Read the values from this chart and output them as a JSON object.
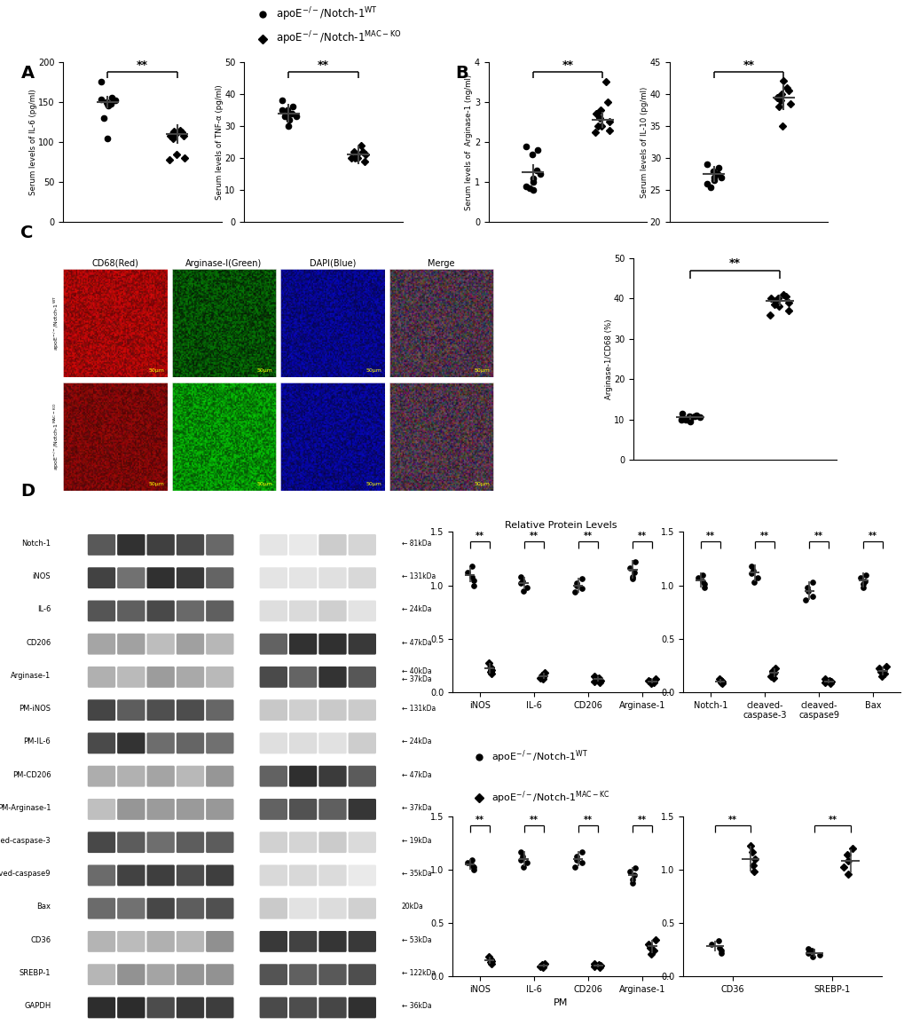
{
  "panel_A": {
    "IL6": {
      "ylabel": "Serum levels of IL-6 (pg/ml)",
      "ylim": [
        0,
        200
      ],
      "yticks": [
        0,
        50,
        100,
        150,
        200
      ],
      "group1": [
        175,
        155,
        150,
        148,
        152,
        145,
        148,
        153,
        130,
        105
      ],
      "group1_mean": 150,
      "group1_err": 8,
      "group2": [
        115,
        112,
        110,
        108,
        113,
        108,
        105,
        85,
        80,
        78
      ],
      "group2_mean": 110,
      "group2_err": 12
    },
    "TNFa": {
      "ylabel": "Serum levels of TNF-α (pg/ml)",
      "ylim": [
        0,
        50
      ],
      "yticks": [
        0,
        10,
        20,
        30,
        40,
        50
      ],
      "group1": [
        38,
        36,
        35,
        34,
        33,
        32,
        34,
        35,
        33,
        30
      ],
      "group1_mean": 34,
      "group1_err": 3,
      "group2": [
        24,
        22,
        21,
        20,
        20,
        19,
        22,
        20,
        21
      ],
      "group2_mean": 21,
      "group2_err": 3
    }
  },
  "panel_B": {
    "Arg1": {
      "ylabel": "Serum levels of  Arginase-1 (ng/ml)",
      "ylim": [
        0,
        4
      ],
      "yticks": [
        0,
        1,
        2,
        3,
        4
      ],
      "group1": [
        1.9,
        1.8,
        1.7,
        1.3,
        1.2,
        1.1,
        1.0,
        0.9,
        0.85,
        0.8
      ],
      "group1_mean": 1.25,
      "group1_err": 0.2,
      "group2": [
        3.5,
        3.0,
        2.8,
        2.7,
        2.6,
        2.5,
        2.4,
        2.4,
        2.3,
        2.25
      ],
      "group2_mean": 2.55,
      "group2_err": 0.2
    },
    "IL10": {
      "ylabel": "Serum levels of IL-10 (pg/ml)",
      "ylim": [
        20,
        45
      ],
      "yticks": [
        20,
        25,
        30,
        35,
        40,
        45
      ],
      "group1": [
        29,
        28.5,
        28,
        27.5,
        27,
        27,
        26.5,
        26,
        25.5
      ],
      "group1_mean": 27.5,
      "group1_err": 1.2,
      "group2": [
        42,
        41,
        40.5,
        40,
        39.5,
        39,
        38.5,
        38,
        35
      ],
      "group2_mean": 39.5,
      "group2_err": 2.0
    }
  },
  "panel_C_scatter": {
    "ylabel": "Arginase-1/CD68 (%)",
    "ylim": [
      0,
      50
    ],
    "yticks": [
      0,
      10,
      20,
      30,
      40,
      50
    ],
    "group1": [
      11.5,
      11.0,
      10.8,
      10.8,
      10.5,
      10.5,
      10.2,
      10.0,
      9.8,
      9.5
    ],
    "group1_mean": 10.5,
    "group1_err": 0.5,
    "group2": [
      41,
      40.5,
      40,
      40,
      39.5,
      39,
      38.5,
      38,
      37,
      36
    ],
    "group2_mean": 39.5,
    "group2_err": 1.5
  },
  "panel_D_charts": {
    "top_left": {
      "title": "Relative Protein Levels",
      "xlabel": "",
      "ylim": [
        0.0,
        1.5
      ],
      "yticks": [
        0.0,
        0.5,
        1.0,
        1.5
      ],
      "categories": [
        "iNOS",
        "IL-6",
        "CD206",
        "Arginase-1"
      ],
      "group1_means": [
        1.1,
        1.02,
        1.0,
        1.15
      ],
      "group1_errs": [
        0.07,
        0.06,
        0.07,
        0.09
      ],
      "group1_points": [
        [
          1.18,
          1.12,
          1.08,
          1.05,
          1.0
        ],
        [
          1.08,
          1.04,
          1.02,
          0.98,
          0.95
        ],
        [
          1.06,
          1.02,
          1.0,
          0.97,
          0.94
        ],
        [
          1.22,
          1.16,
          1.12,
          1.08,
          1.06
        ]
      ],
      "group2_means": [
        0.22,
        0.15,
        0.12,
        0.1
      ],
      "group2_errs": [
        0.05,
        0.03,
        0.025,
        0.02
      ],
      "group2_points": [
        [
          0.27,
          0.23,
          0.21,
          0.19,
          0.17
        ],
        [
          0.18,
          0.16,
          0.14,
          0.13,
          0.12
        ],
        [
          0.15,
          0.13,
          0.11,
          0.1,
          0.09
        ],
        [
          0.12,
          0.11,
          0.1,
          0.09,
          0.08
        ]
      ]
    },
    "top_right": {
      "title": "",
      "xlabel": "",
      "ylim": [
        0.0,
        1.5
      ],
      "yticks": [
        0.0,
        0.5,
        1.0,
        1.5
      ],
      "categories": [
        "Notch-1",
        "cleaved-\ncaspase-3",
        "cleaved-\ncaspase9",
        "Bax"
      ],
      "group1_means": [
        1.05,
        1.12,
        0.95,
        1.05
      ],
      "group1_errs": [
        0.07,
        0.08,
        0.09,
        0.07
      ],
      "group1_points": [
        [
          1.1,
          1.07,
          1.04,
          1.01,
          0.98
        ],
        [
          1.18,
          1.14,
          1.11,
          1.07,
          1.03
        ],
        [
          1.03,
          0.98,
          0.95,
          0.9,
          0.86
        ],
        [
          1.1,
          1.07,
          1.04,
          1.01,
          0.98
        ]
      ],
      "group2_means": [
        0.1,
        0.18,
        0.1,
        0.2
      ],
      "group2_errs": [
        0.02,
        0.04,
        0.02,
        0.04
      ],
      "group2_points": [
        [
          0.12,
          0.11,
          0.1,
          0.09,
          0.08
        ],
        [
          0.22,
          0.2,
          0.17,
          0.15,
          0.13
        ],
        [
          0.12,
          0.11,
          0.1,
          0.09,
          0.08
        ],
        [
          0.24,
          0.22,
          0.19,
          0.17,
          0.15
        ]
      ]
    },
    "bottom_left": {
      "title": "",
      "xlabel": "PM",
      "ylim": [
        0.0,
        1.5
      ],
      "yticks": [
        0.0,
        0.5,
        1.0,
        1.5
      ],
      "categories": [
        "iNOS",
        "IL-6",
        "CD206",
        "Arginase-1"
      ],
      "group1_means": [
        1.05,
        1.1,
        1.1,
        0.95
      ],
      "group1_errs": [
        0.05,
        0.07,
        0.07,
        0.07
      ],
      "group1_points": [
        [
          1.09,
          1.06,
          1.04,
          1.02,
          1.0
        ],
        [
          1.16,
          1.12,
          1.09,
          1.06,
          1.02
        ],
        [
          1.16,
          1.12,
          1.09,
          1.06,
          1.02
        ],
        [
          1.01,
          0.98,
          0.95,
          0.91,
          0.87
        ]
      ],
      "group2_means": [
        0.15,
        0.1,
        0.1,
        0.28
      ],
      "group2_errs": [
        0.03,
        0.02,
        0.02,
        0.06
      ],
      "group2_points": [
        [
          0.18,
          0.16,
          0.14,
          0.13,
          0.12
        ],
        [
          0.12,
          0.11,
          0.1,
          0.09,
          0.08
        ],
        [
          0.12,
          0.11,
          0.1,
          0.09,
          0.08
        ],
        [
          0.34,
          0.3,
          0.27,
          0.24,
          0.21
        ]
      ]
    },
    "bottom_right": {
      "title": "",
      "xlabel": "",
      "ylim": [
        0.0,
        1.5
      ],
      "yticks": [
        0.0,
        0.5,
        1.0,
        1.5
      ],
      "categories": [
        "CD36",
        "SREBP-1"
      ],
      "group1_means": [
        0.28,
        0.22
      ],
      "group1_errs": [
        0.05,
        0.04
      ],
      "group1_points": [
        [
          0.33,
          0.3,
          0.27,
          0.24,
          0.22
        ],
        [
          0.26,
          0.24,
          0.22,
          0.2,
          0.18
        ]
      ],
      "group2_means": [
        1.1,
        1.08
      ],
      "group2_errs": [
        0.12,
        0.11
      ],
      "group2_points": [
        [
          1.22,
          1.16,
          1.1,
          1.04,
          0.98
        ],
        [
          1.2,
          1.14,
          1.08,
          1.02,
          0.96
        ]
      ]
    }
  },
  "wb_labels": [
    "Notch-1",
    "iNOS",
    "IL-6",
    "CD206",
    "Arginase-1",
    "PM-iNOS",
    "PM-IL-6",
    "PM-CD206",
    "PM-Arginase-1",
    "cleaved-caspase-3",
    "cleaved-caspase9",
    "Bax",
    "CD36",
    "SREBP-1",
    "GAPDH"
  ],
  "wb_kda": [
    "81kDa",
    "131kDa",
    "24kDa",
    "47kDa",
    "40kDa",
    "131kDa",
    "24kDa",
    "47kDa",
    "37kDa",
    "19kDa",
    "35kDa",
    "20kDa",
    "53kDa",
    "122kDa",
    "36kDa"
  ]
}
